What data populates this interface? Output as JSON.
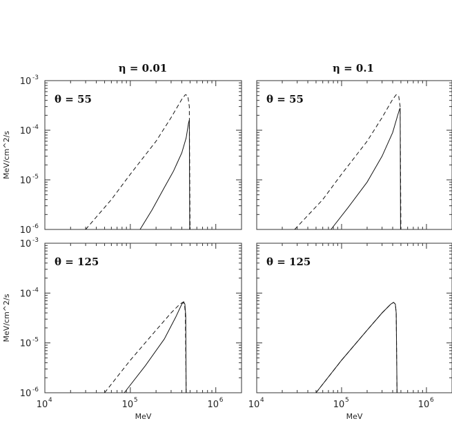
{
  "figure": {
    "column_titles": [
      "η = 0.01",
      "η = 0.1"
    ]
  },
  "chart_data": [
    {
      "type": "line",
      "panel": "top-left",
      "label": "θ = 55",
      "xlabel": "",
      "ylabel": "MeV/cm^2/s",
      "xscale": "log",
      "yscale": "log",
      "xlim": [
        10000,
        2000000
      ],
      "ylim": [
        1e-06,
        0.001
      ],
      "x_ticks": [],
      "y_ticks": [
        {
          "base": "10",
          "exp": "-3"
        },
        {
          "base": "10",
          "exp": "-4"
        },
        {
          "base": "10",
          "exp": "-5"
        },
        {
          "base": "10",
          "exp": "-6"
        }
      ],
      "series": [
        {
          "style": "dashed",
          "points": [
            [
              30000,
              1e-06
            ],
            [
              60000,
              4e-06
            ],
            [
              100000,
              1.3e-05
            ],
            [
              200000,
              6e-05
            ],
            [
              300000,
              0.00018
            ],
            [
              400000,
              0.00042
            ],
            [
              440000,
              0.00052
            ],
            [
              470000,
              0.0005
            ],
            [
              490000,
              0.0003
            ],
            [
              500000,
              1e-06
            ]
          ]
        },
        {
          "style": "solid",
          "points": [
            [
              130000,
              1e-06
            ],
            [
              180000,
              2.5e-06
            ],
            [
              250000,
              7e-06
            ],
            [
              320000,
              1.5e-05
            ],
            [
              400000,
              3.5e-05
            ],
            [
              450000,
              7e-05
            ],
            [
              480000,
              0.00014
            ],
            [
              490000,
              0.00016
            ],
            [
              495000,
              1e-06
            ]
          ]
        }
      ]
    },
    {
      "type": "line",
      "panel": "top-right",
      "label": "θ = 55",
      "xlabel": "",
      "ylabel": "",
      "xscale": "log",
      "yscale": "log",
      "xlim": [
        10000,
        2000000
      ],
      "ylim": [
        1e-06,
        0.001
      ],
      "x_ticks": [],
      "y_ticks": [],
      "series": [
        {
          "style": "dashed",
          "points": [
            [
              28000,
              1e-06
            ],
            [
              60000,
              4e-06
            ],
            [
              100000,
              1.3e-05
            ],
            [
              200000,
              6e-05
            ],
            [
              300000,
              0.00018
            ],
            [
              400000,
              0.00042
            ],
            [
              440000,
              0.00052
            ],
            [
              470000,
              0.0005
            ],
            [
              490000,
              0.0003
            ],
            [
              500000,
              1e-06
            ]
          ]
        },
        {
          "style": "solid",
          "points": [
            [
              75000,
              1e-06
            ],
            [
              120000,
              2.8e-06
            ],
            [
              200000,
              9e-06
            ],
            [
              300000,
              3e-05
            ],
            [
              400000,
              9e-05
            ],
            [
              450000,
              0.00018
            ],
            [
              480000,
              0.00026
            ],
            [
              490000,
              0.00028
            ],
            [
              495000,
              1e-06
            ]
          ]
        }
      ]
    },
    {
      "type": "line",
      "panel": "bottom-left",
      "label": "θ = 125",
      "xlabel": "MeV",
      "ylabel": "MeV/cm^2/s",
      "xscale": "log",
      "yscale": "log",
      "xlim": [
        10000,
        2000000
      ],
      "ylim": [
        1e-06,
        0.001
      ],
      "x_ticks": [
        {
          "base": "10",
          "exp": "4"
        },
        {
          "base": "10",
          "exp": "5"
        },
        {
          "base": "10",
          "exp": "6"
        }
      ],
      "y_ticks": [
        {
          "base": "10",
          "exp": "-3"
        },
        {
          "base": "10",
          "exp": "-4"
        },
        {
          "base": "10",
          "exp": "-5"
        },
        {
          "base": "10",
          "exp": "-6"
        }
      ],
      "series": [
        {
          "style": "dashed",
          "points": [
            [
              50000,
              1e-06
            ],
            [
              100000,
              4.5e-06
            ],
            [
              200000,
              1.8e-05
            ],
            [
              300000,
              4e-05
            ],
            [
              380000,
              6e-05
            ],
            [
              410000,
              6.5e-05
            ],
            [
              430000,
              6e-05
            ],
            [
              440000,
              4e-05
            ],
            [
              450000,
              1e-06
            ]
          ]
        },
        {
          "style": "solid",
          "points": [
            [
              85000,
              1e-06
            ],
            [
              150000,
              3.5e-06
            ],
            [
              250000,
              1.2e-05
            ],
            [
              340000,
              3.3e-05
            ],
            [
              400000,
              6e-05
            ],
            [
              420000,
              6.7e-05
            ],
            [
              435000,
              6e-05
            ],
            [
              445000,
              3.5e-05
            ],
            [
              450000,
              1e-06
            ]
          ]
        }
      ]
    },
    {
      "type": "line",
      "panel": "bottom-right",
      "label": "θ = 125",
      "xlabel": "MeV",
      "ylabel": "",
      "xscale": "log",
      "yscale": "log",
      "xlim": [
        10000,
        2000000
      ],
      "ylim": [
        1e-06,
        0.001
      ],
      "x_ticks": [
        {
          "base": "10",
          "exp": "4"
        },
        {
          "base": "10",
          "exp": "5"
        },
        {
          "base": "10",
          "exp": "6"
        }
      ],
      "y_ticks": [],
      "series": [
        {
          "style": "dashed",
          "points": [
            [
              50000,
              1e-06
            ],
            [
              100000,
              4.5e-06
            ],
            [
              200000,
              1.8e-05
            ],
            [
              300000,
              4e-05
            ],
            [
              380000,
              6e-05
            ],
            [
              410000,
              6.5e-05
            ],
            [
              430000,
              6e-05
            ],
            [
              440000,
              4e-05
            ],
            [
              450000,
              1e-06
            ]
          ]
        },
        {
          "style": "solid",
          "points": [
            [
              50000,
              1e-06
            ],
            [
              100000,
              4.5e-06
            ],
            [
              200000,
              1.8e-05
            ],
            [
              300000,
              4e-05
            ],
            [
              380000,
              6e-05
            ],
            [
              410000,
              6.5e-05
            ],
            [
              430000,
              6e-05
            ],
            [
              440000,
              4e-05
            ],
            [
              450000,
              1e-06
            ]
          ]
        }
      ]
    }
  ]
}
